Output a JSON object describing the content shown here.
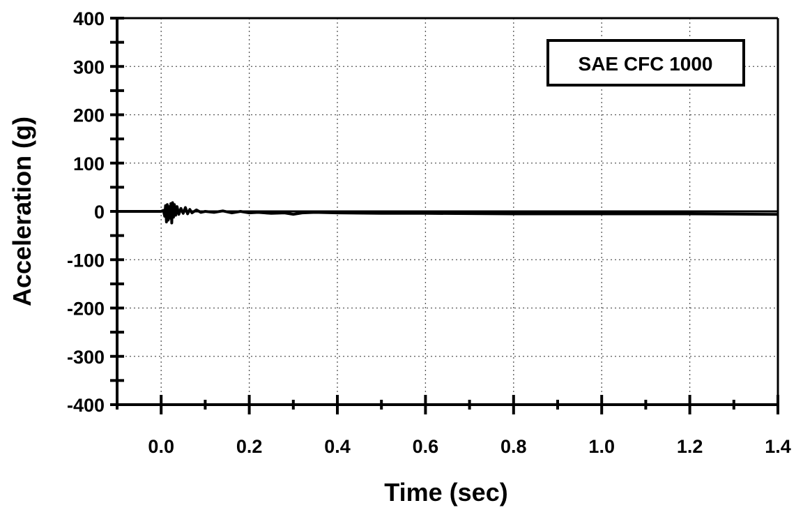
{
  "chart_data": {
    "type": "line",
    "title": "",
    "xlabel": "Time  (sec)",
    "ylabel": "Acceleration  (g)",
    "xlim": [
      -0.1,
      1.4
    ],
    "ylim": [
      -400,
      400
    ],
    "x_ticks": [
      0.0,
      0.2,
      0.4,
      0.6,
      0.8,
      1.0,
      1.2,
      1.4
    ],
    "x_tick_labels": [
      "0.0",
      "0.2",
      "0.4",
      "0.6",
      "0.8",
      "1.0",
      "1.2",
      "1.4"
    ],
    "y_ticks": [
      400,
      300,
      200,
      100,
      0,
      -100,
      -200,
      -300,
      -400
    ],
    "y_tick_labels": [
      "400",
      "300",
      "200",
      "100",
      "0",
      "-100",
      "-200",
      "-300",
      "-400"
    ],
    "grid": true,
    "legend": {
      "text": "SAE CFC 1000",
      "placement": "top-right"
    },
    "series": [
      {
        "color": "#000000",
        "x": [
          -0.1,
          0.0,
          0.005,
          0.008,
          0.01,
          0.012,
          0.014,
          0.016,
          0.018,
          0.02,
          0.022,
          0.024,
          0.026,
          0.028,
          0.03,
          0.033,
          0.036,
          0.04,
          0.045,
          0.05,
          0.055,
          0.06,
          0.065,
          0.07,
          0.08,
          0.09,
          0.1,
          0.12,
          0.14,
          0.16,
          0.18,
          0.2,
          0.22,
          0.25,
          0.28,
          0.3,
          0.32,
          0.35,
          0.4,
          0.5,
          0.6,
          0.8,
          1.0,
          1.2,
          1.4
        ],
        "y": [
          0,
          0,
          2,
          -10,
          12,
          -22,
          14,
          -18,
          10,
          -14,
          16,
          -24,
          18,
          -12,
          14,
          -8,
          10,
          -6,
          6,
          -4,
          8,
          -5,
          4,
          -3,
          3,
          -2,
          0,
          -2,
          1,
          -3,
          0,
          -3,
          -2,
          -4,
          -3,
          -6,
          -3,
          -2,
          -3,
          -4,
          -4,
          -5,
          -5,
          -5,
          -6
        ]
      }
    ]
  }
}
